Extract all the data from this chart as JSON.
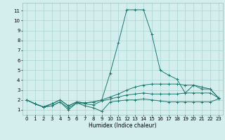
{
  "xlabel": "Humidex (Indice chaleur)",
  "ylabel": "",
  "xlim": [
    -0.5,
    23.5
  ],
  "ylim": [
    0.5,
    11.8
  ],
  "xticks": [
    0,
    1,
    2,
    3,
    4,
    5,
    6,
    7,
    8,
    9,
    10,
    11,
    12,
    13,
    14,
    15,
    16,
    17,
    18,
    19,
    20,
    21,
    22,
    23
  ],
  "yticks": [
    1,
    2,
    3,
    4,
    5,
    6,
    7,
    8,
    9,
    10,
    11
  ],
  "background_color": "#d4eeee",
  "grid_color": "#aad4d4",
  "line_color": "#1a7a6e",
  "series": [
    {
      "x": [
        0,
        1,
        2,
        3,
        4,
        5,
        6,
        7,
        8,
        9,
        10,
        11,
        12,
        13,
        14,
        15,
        16,
        17,
        18,
        19,
        20,
        21,
        22,
        23
      ],
      "y": [
        2.0,
        1.6,
        1.3,
        1.4,
        1.8,
        1.0,
        1.7,
        1.4,
        1.2,
        0.85,
        1.8,
        1.9,
        2.0,
        2.0,
        2.1,
        2.0,
        1.9,
        1.8,
        1.8,
        1.8,
        1.8,
        1.8,
        1.8,
        2.1
      ]
    },
    {
      "x": [
        0,
        1,
        2,
        3,
        4,
        5,
        6,
        7,
        8,
        9,
        10,
        11,
        12,
        13,
        14,
        15,
        16,
        17,
        18,
        19,
        20,
        21,
        22,
        23
      ],
      "y": [
        2.0,
        1.6,
        1.3,
        1.4,
        1.8,
        1.2,
        1.7,
        1.6,
        1.5,
        1.9,
        2.1,
        2.3,
        2.5,
        2.6,
        2.7,
        2.6,
        2.6,
        2.6,
        2.6,
        2.7,
        2.7,
        2.7,
        2.7,
        2.2
      ]
    },
    {
      "x": [
        0,
        1,
        2,
        3,
        4,
        5,
        6,
        7,
        8,
        9,
        10,
        11,
        12,
        13,
        14,
        15,
        16,
        17,
        18,
        19,
        20,
        21,
        22,
        23
      ],
      "y": [
        2.0,
        1.6,
        1.3,
        1.6,
        2.0,
        1.4,
        1.8,
        1.7,
        1.8,
        2.0,
        2.3,
        2.6,
        3.0,
        3.3,
        3.5,
        3.6,
        3.6,
        3.6,
        3.6,
        3.5,
        3.5,
        3.3,
        3.1,
        2.2
      ]
    },
    {
      "x": [
        0,
        1,
        2,
        3,
        4,
        5,
        6,
        7,
        8,
        9,
        10,
        11,
        12,
        13,
        14,
        15,
        16,
        17,
        18,
        19,
        20,
        21,
        22,
        23
      ],
      "y": [
        2.0,
        1.6,
        1.3,
        1.6,
        2.0,
        1.4,
        1.8,
        1.7,
        1.8,
        2.0,
        4.7,
        7.8,
        11.1,
        11.1,
        11.1,
        8.6,
        5.0,
        4.5,
        4.1,
        2.7,
        3.5,
        3.1,
        3.1,
        2.2
      ]
    }
  ]
}
